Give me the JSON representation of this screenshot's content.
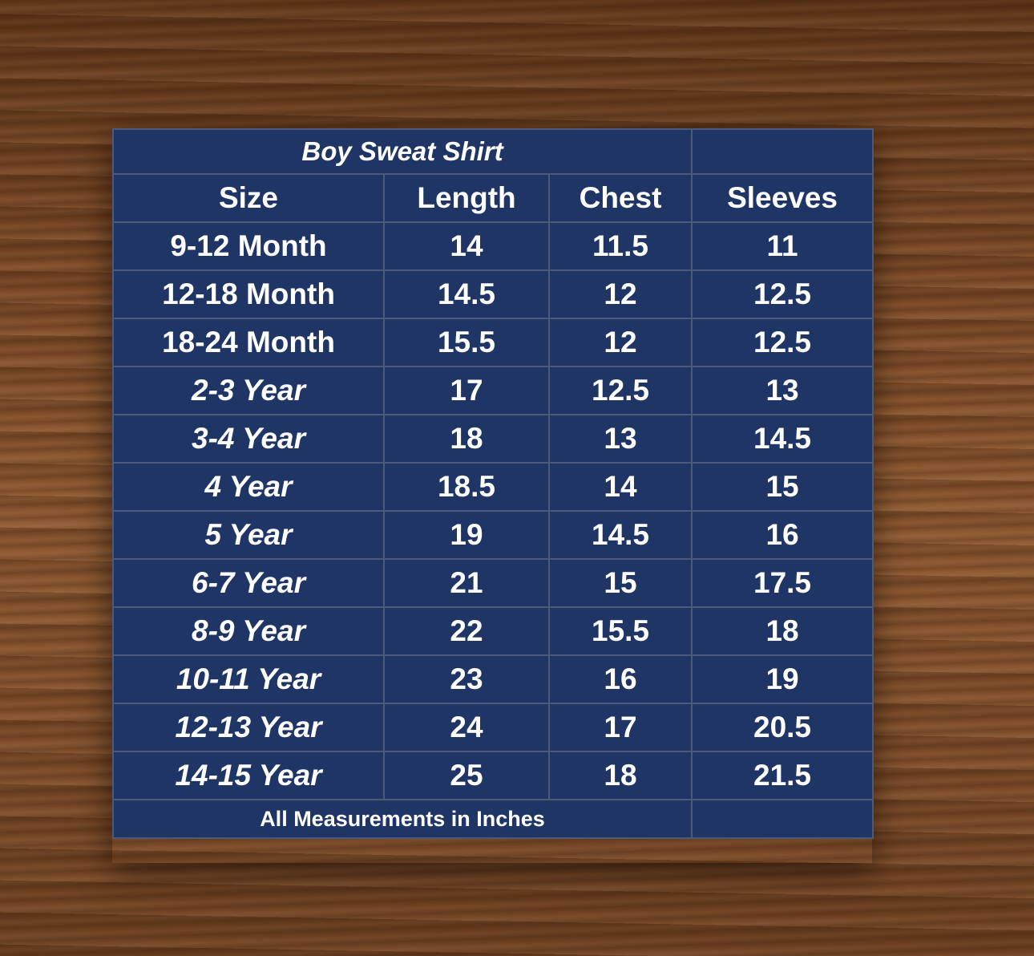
{
  "title": "Boy Sweat Shirt",
  "headers": [
    "Size",
    "Length",
    "Chest",
    "Sleeves"
  ],
  "rows": [
    {
      "size": "9-12 Month",
      "length": "14",
      "chest": "11.5",
      "sleeves": "11",
      "italic": false
    },
    {
      "size": "12-18 Month",
      "length": "14.5",
      "chest": "12",
      "sleeves": "12.5",
      "italic": false
    },
    {
      "size": "18-24 Month",
      "length": "15.5",
      "chest": "12",
      "sleeves": "12.5",
      "italic": false
    },
    {
      "size": "2-3 Year",
      "length": "17",
      "chest": "12.5",
      "sleeves": "13",
      "italic": true
    },
    {
      "size": "3-4 Year",
      "length": "18",
      "chest": "13",
      "sleeves": "14.5",
      "italic": true
    },
    {
      "size": "4 Year",
      "length": "18.5",
      "chest": "14",
      "sleeves": "15",
      "italic": true
    },
    {
      "size": "5 Year",
      "length": "19",
      "chest": "14.5",
      "sleeves": "16",
      "italic": true
    },
    {
      "size": "6-7 Year",
      "length": "21",
      "chest": "15",
      "sleeves": "17.5",
      "italic": true
    },
    {
      "size": "8-9 Year",
      "length": "22",
      "chest": "15.5",
      "sleeves": "18",
      "italic": true
    },
    {
      "size": "10-11 Year",
      "length": "23",
      "chest": "16",
      "sleeves": "19",
      "italic": true
    },
    {
      "size": "12-13 Year",
      "length": "24",
      "chest": "17",
      "sleeves": "20.5",
      "italic": true
    },
    {
      "size": "14-15 Year",
      "length": "25",
      "chest": "18",
      "sleeves": "21.5",
      "italic": true
    }
  ],
  "footer": "All  Measurements in Inches",
  "colors": {
    "table_bg": "#1f3566",
    "border": "#4b5a78",
    "text": "#ffffff",
    "background": "wood-brown"
  }
}
